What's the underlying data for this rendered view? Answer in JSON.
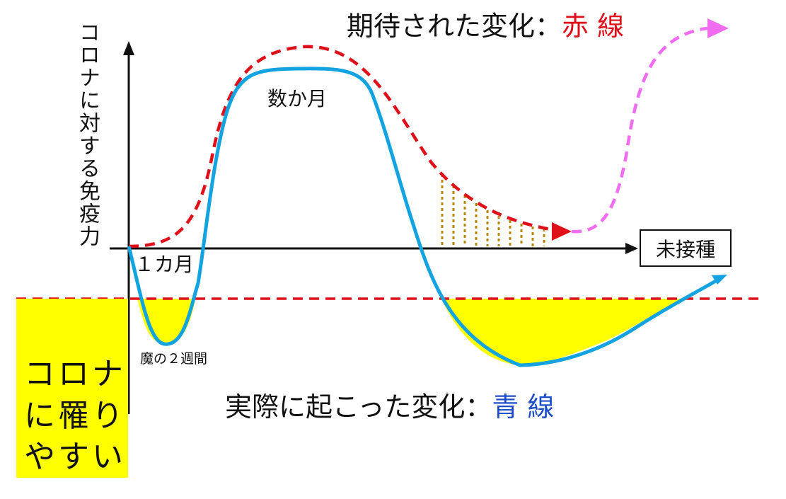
{
  "texts": {
    "y_axis_label": "コロナに対する免疫力",
    "top_title_prefix": "期待された変化：",
    "top_title_color": "赤 線",
    "bottom_title_prefix": "実際に起こった変化：",
    "bottom_title_color": "青 線",
    "label_months": "数か月",
    "label_one_month": "１カ月",
    "label_devil_two_weeks": "魔の２週間",
    "label_unvaccinated": "未接種",
    "label_susceptible": "コロナに罹りやすい"
  },
  "colors": {
    "expected_line": "#e0101a",
    "actual_line": "#12a3e0",
    "future_line": "#f06cf0",
    "susceptible_fill": "#ffff00",
    "hatch": "#b8860b",
    "axis": "#111111"
  },
  "icons": {
    "down_arrow": "red-down-arrow-icon",
    "axis_arrows": "axis-arrow-icon"
  }
}
